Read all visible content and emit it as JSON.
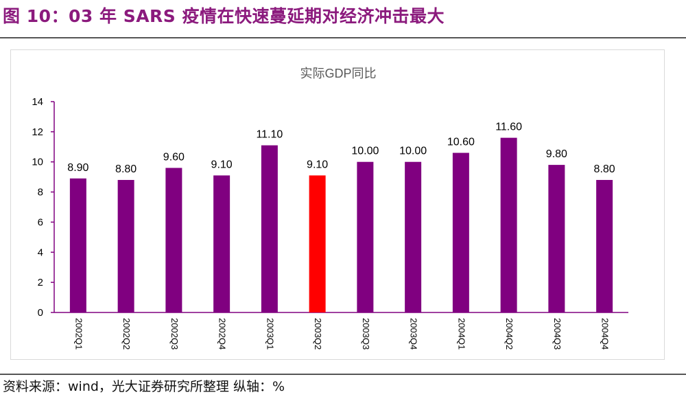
{
  "figure": {
    "title": "图 10：03 年 SARS 疫情在快速蔓延期对经济冲击最大",
    "source": "资料来源：wind，光大证券研究所整理 纵轴：%"
  },
  "chart_data": {
    "type": "bar",
    "title": "实际GDP同比",
    "xlabel": "",
    "ylabel": "",
    "categories": [
      "2002Q1",
      "2002Q2",
      "2002Q3",
      "2002Q4",
      "2003Q1",
      "2003Q2",
      "2003Q3",
      "2003Q4",
      "2004Q1",
      "2004Q2",
      "2004Q3",
      "2004Q4"
    ],
    "values": [
      8.9,
      8.8,
      9.6,
      9.1,
      11.1,
      9.1,
      10.0,
      10.0,
      10.6,
      11.6,
      9.8,
      8.8
    ],
    "value_labels": [
      "8.90",
      "8.80",
      "9.60",
      "9.10",
      "11.10",
      "9.10",
      "10.00",
      "10.00",
      "10.60",
      "11.60",
      "9.80",
      "8.80"
    ],
    "ylim": [
      0,
      14
    ],
    "yticks": [
      0,
      2,
      4,
      6,
      8,
      10,
      12,
      14
    ],
    "grid": false,
    "legend": "none",
    "bar_color": "#800080",
    "highlight_color": "#ff0000",
    "highlight_category": "2003Q2"
  }
}
